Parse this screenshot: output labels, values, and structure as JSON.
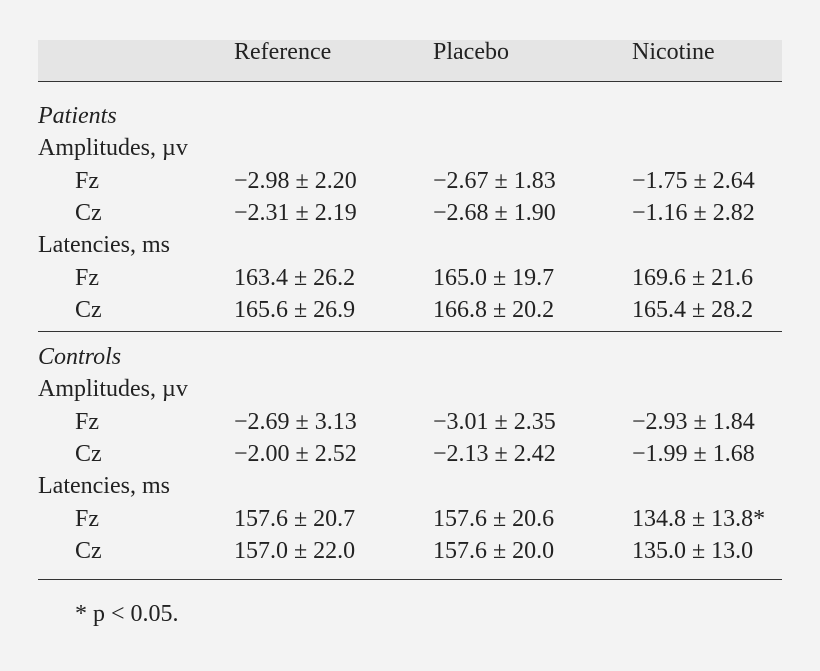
{
  "table": {
    "columns": [
      "Reference",
      "Placebo",
      "Nicotine"
    ],
    "sections": [
      {
        "title": "Patients",
        "groups": [
          {
            "label": "Amplitudes, µv",
            "rows": [
              {
                "label": "Fz",
                "cells": [
                  "−2.98 ± 2.20",
                  "−2.67 ± 1.83",
                  "−1.75 ± 2.64"
                ]
              },
              {
                "label": "Cz",
                "cells": [
                  "−2.31 ± 2.19",
                  "−2.68 ± 1.90",
                  "−1.16 ± 2.82"
                ]
              }
            ]
          },
          {
            "label": "Latencies, ms",
            "rows": [
              {
                "label": "Fz",
                "cells": [
                  "163.4 ± 26.2",
                  "165.0 ± 19.7",
                  "169.6 ± 21.6"
                ]
              },
              {
                "label": "Cz",
                "cells": [
                  "165.6 ± 26.9",
                  "166.8 ± 20.2",
                  "165.4 ± 28.2"
                ]
              }
            ]
          }
        ]
      },
      {
        "title": "Controls",
        "groups": [
          {
            "label": "Amplitudes, µv",
            "rows": [
              {
                "label": "Fz",
                "cells": [
                  "−2.69 ± 3.13",
                  "−3.01 ± 2.35",
                  "−2.93 ± 1.84"
                ]
              },
              {
                "label": "Cz",
                "cells": [
                  "−2.00 ± 2.52",
                  "−2.13 ± 2.42",
                  "−1.99 ± 1.68"
                ]
              }
            ]
          },
          {
            "label": "Latencies, ms",
            "rows": [
              {
                "label": "Fz",
                "cells": [
                  "157.6 ± 20.7",
                  "157.6 ± 20.6",
                  "134.8 ± 13.8*"
                ]
              },
              {
                "label": "Cz",
                "cells": [
                  "157.0 ± 22.0",
                  "157.6 ± 20.0",
                  "135.0 ± 13.0"
                ]
              }
            ]
          }
        ]
      }
    ],
    "footnote": "* p < 0.05."
  }
}
